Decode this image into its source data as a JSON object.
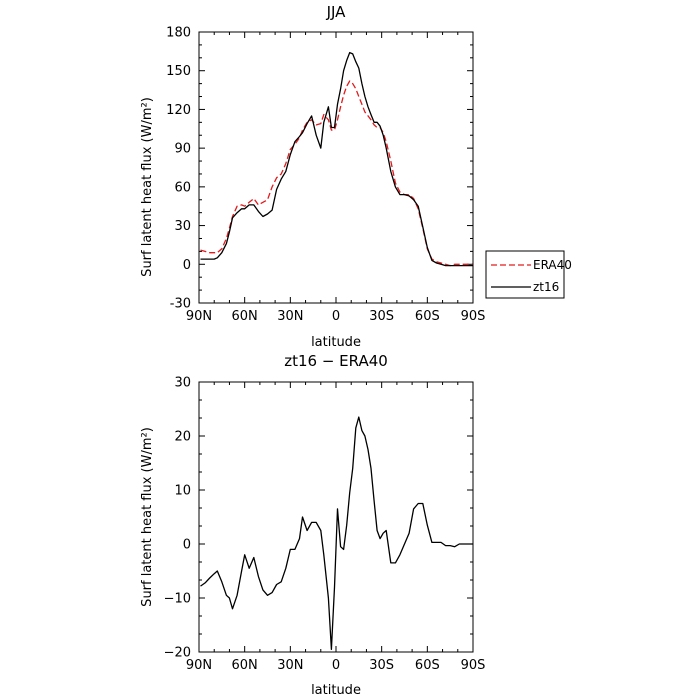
{
  "chart_data": [
    {
      "type": "line",
      "title": "JJA",
      "xlabel": "latitude",
      "ylabel": "Surf latent heat flux (W/m²)",
      "xlim": [
        90,
        -90
      ],
      "ylim": [
        -30,
        180
      ],
      "xticks": [
        90,
        60,
        30,
        0,
        -30,
        -60,
        -90
      ],
      "xtick_labels": [
        "90N",
        "60N",
        "30N",
        "0",
        "30S",
        "60S",
        "90S"
      ],
      "yticks": [
        -30,
        0,
        30,
        60,
        90,
        120,
        150,
        180
      ],
      "ytick_labels": [
        "-30",
        "0",
        "30",
        "60",
        "90",
        "120",
        "150",
        "180"
      ],
      "legend": {
        "position": "outside-right"
      },
      "series": [
        {
          "name": "ERA40",
          "color": "#e41a1c",
          "style": "dashed",
          "x": [
            89,
            86,
            83,
            80,
            78,
            75,
            72,
            70,
            68,
            65,
            62,
            60,
            57,
            54,
            51,
            48,
            45,
            42,
            39,
            36,
            33,
            30,
            27,
            24,
            22,
            19,
            16,
            13,
            10,
            8,
            5,
            3,
            1,
            -1,
            -3,
            -5,
            -7,
            -9,
            -11,
            -13,
            -15,
            -17,
            -19,
            -21,
            -23,
            -25,
            -27,
            -29,
            -31,
            -33,
            -36,
            -39,
            -42,
            -45,
            -48,
            -51,
            -54,
            -57,
            -60,
            -63,
            -66,
            -69,
            -72,
            -75,
            -78,
            -81,
            -84,
            -87,
            -90
          ],
          "y": [
            11,
            10,
            9,
            9,
            9,
            12,
            20,
            28,
            37,
            45,
            46,
            45,
            48,
            51,
            46,
            48,
            50,
            60,
            67,
            70,
            78,
            89,
            93,
            98,
            104,
            110,
            112,
            108,
            109,
            116,
            112,
            104,
            104,
            112,
            122,
            131,
            138,
            142,
            140,
            136,
            130,
            124,
            118,
            115,
            112,
            108,
            106,
            106,
            102,
            95,
            80,
            63,
            56,
            54,
            54,
            51,
            43,
            28,
            12,
            4,
            2,
            1,
            0,
            -1,
            0,
            0,
            0,
            0,
            0
          ]
        },
        {
          "name": "zt16",
          "color": "#000000",
          "style": "solid",
          "x": [
            89,
            86,
            83,
            80,
            78,
            75,
            72,
            70,
            68,
            65,
            62,
            60,
            57,
            54,
            51,
            48,
            45,
            42,
            39,
            36,
            33,
            30,
            27,
            24,
            22,
            19,
            16,
            13,
            10,
            8,
            5,
            3,
            1,
            -1,
            -3,
            -5,
            -7,
            -9,
            -11,
            -13,
            -15,
            -17,
            -19,
            -21,
            -23,
            -25,
            -27,
            -29,
            -31,
            -33,
            -36,
            -39,
            -42,
            -45,
            -48,
            -51,
            -54,
            -57,
            -60,
            -63,
            -66,
            -69,
            -72,
            -75,
            -78,
            -81,
            -84,
            -87,
            -90
          ],
          "y": [
            4,
            4,
            4,
            4,
            5,
            9,
            16,
            25,
            36,
            40,
            43,
            43,
            46,
            46,
            41,
            37,
            39,
            42,
            58,
            66,
            72,
            85,
            95,
            99,
            102,
            109,
            115,
            100,
            90,
            110,
            122,
            106,
            106,
            124,
            136,
            150,
            158,
            164,
            163,
            157,
            152,
            140,
            130,
            122,
            116,
            110,
            110,
            107,
            100,
            90,
            72,
            60,
            54,
            54,
            53,
            50,
            45,
            29,
            13,
            3,
            1,
            0,
            -1,
            -1,
            -1,
            -1,
            -1,
            -1,
            -1
          ]
        }
      ]
    },
    {
      "type": "line",
      "title": "zt16 − ERA40",
      "xlabel": "latitude",
      "ylabel": "Surf latent heat flux (W/m²)",
      "xlim": [
        90,
        -90
      ],
      "ylim": [
        -20,
        30
      ],
      "xticks": [
        90,
        60,
        30,
        0,
        -30,
        -60,
        -90
      ],
      "xtick_labels": [
        "90N",
        "60N",
        "30N",
        "0",
        "30S",
        "60S",
        "90S"
      ],
      "yticks": [
        -20,
        -10,
        0,
        10,
        20,
        30
      ],
      "ytick_labels": [
        "−20",
        "−10",
        "0",
        "10",
        "20",
        "30"
      ],
      "series": [
        {
          "color": "#000000",
          "style": "solid",
          "x": [
            89,
            86,
            83,
            80,
            78,
            75,
            72,
            70,
            68,
            65,
            62,
            60,
            57,
            54,
            51,
            48,
            45,
            42,
            39,
            36,
            33,
            30,
            27,
            24,
            22,
            19,
            16,
            13,
            10,
            8,
            5,
            3,
            1,
            -1,
            -3,
            -5,
            -7,
            -9,
            -11,
            -13,
            -15,
            -17,
            -19,
            -21,
            -23,
            -25,
            -27,
            -29,
            -31,
            -33,
            -36,
            -39,
            -42,
            -45,
            -48,
            -51,
            -54,
            -57,
            -60,
            -63,
            -66,
            -69,
            -72,
            -75,
            -78,
            -81,
            -84,
            -87,
            -90
          ],
          "y": [
            -7.8,
            -7.2,
            -6.3,
            -5.5,
            -5.0,
            -7.0,
            -9.5,
            -10.0,
            -12.0,
            -9.5,
            -5.0,
            -2.0,
            -4.5,
            -2.5,
            -6.0,
            -8.5,
            -9.5,
            -9.0,
            -7.5,
            -7.0,
            -4.5,
            -1.0,
            -1.0,
            1.0,
            5.0,
            2.5,
            4.0,
            4.0,
            2.5,
            -2.0,
            -10.0,
            -19.5,
            -8.0,
            6.5,
            -0.5,
            -1.0,
            3.5,
            9.5,
            14.0,
            21.5,
            23.5,
            21.0,
            20.0,
            17.5,
            14.0,
            8.0,
            2.5,
            1.0,
            2.0,
            2.5,
            -3.5,
            -3.5,
            -2.0,
            0.0,
            2.0,
            6.5,
            7.5,
            7.5,
            3.5,
            0.3,
            0.3,
            0.3,
            -0.3,
            -0.3,
            -0.5,
            0.0,
            0.0,
            0.0,
            0.0
          ]
        }
      ]
    }
  ]
}
